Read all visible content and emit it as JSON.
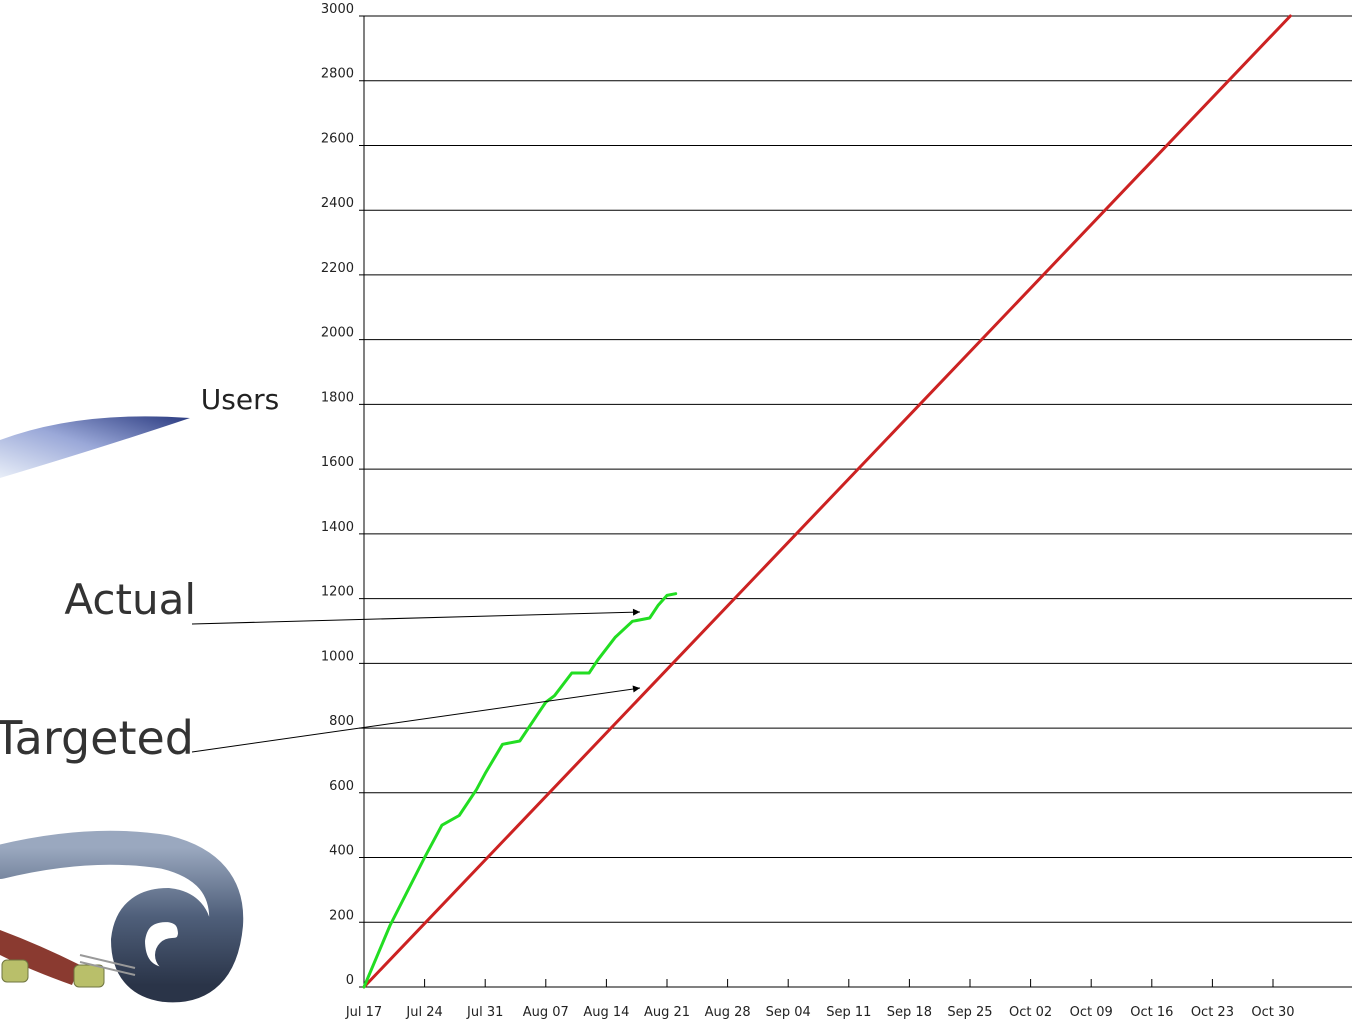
{
  "chart_data": {
    "type": "line",
    "ylabel": "Users",
    "ylim": [
      0,
      3000
    ],
    "yticks": [
      0,
      200,
      400,
      600,
      800,
      1000,
      1200,
      1400,
      1600,
      1800,
      2000,
      2200,
      2400,
      2600,
      2800,
      3000
    ],
    "xlim": [
      "2006-07-17",
      "2006-11-06"
    ],
    "xticks": [
      "Jul 17",
      "Jul 24",
      "Jul 31",
      "Aug 07",
      "Aug 14",
      "Aug 21",
      "Aug 28",
      "Sep 04",
      "Sep 11",
      "Sep 18",
      "Sep 25",
      "Oct 02",
      "Oct 09",
      "Oct 16",
      "Oct 23",
      "Oct 30"
    ],
    "grid": "horizontal",
    "series": [
      {
        "name": "Actual",
        "color": "#22dd22",
        "x": [
          "2006-07-17",
          "2006-07-20",
          "2006-07-24",
          "2006-07-26",
          "2006-07-28",
          "2006-07-30",
          "2006-07-31",
          "2006-08-02",
          "2006-08-04",
          "2006-08-06",
          "2006-08-07",
          "2006-08-08",
          "2006-08-10",
          "2006-08-12",
          "2006-08-13",
          "2006-08-15",
          "2006-08-17",
          "2006-08-19",
          "2006-08-20",
          "2006-08-21",
          "2006-08-22"
        ],
        "values": [
          0,
          190,
          400,
          500,
          530,
          610,
          660,
          750,
          760,
          840,
          880,
          900,
          970,
          970,
          1010,
          1080,
          1130,
          1140,
          1180,
          1210,
          1215
        ]
      },
      {
        "name": "Targeted",
        "color": "#cc2222",
        "x": [
          "2006-07-17",
          "2006-11-01"
        ],
        "values": [
          0,
          3000
        ]
      }
    ],
    "annotations": [
      {
        "text": "Actual",
        "points_to": "Actual"
      },
      {
        "text": "Targeted",
        "points_to": "Targeted"
      }
    ]
  }
}
